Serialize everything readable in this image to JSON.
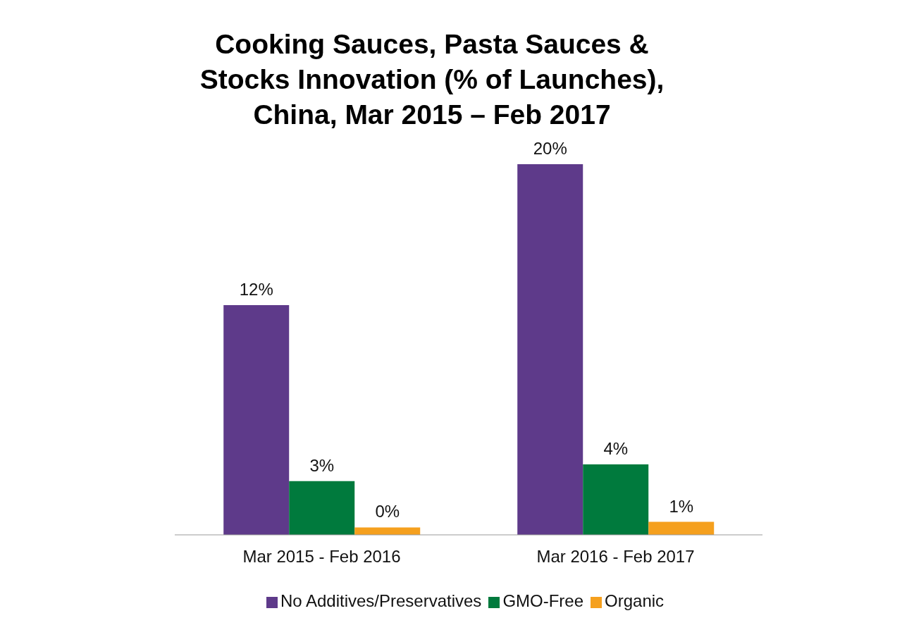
{
  "chart_data": {
    "type": "bar",
    "title": "Cooking Sauces, Pasta Sauces & Stocks Innovation (% of Launches), China, Mar 2015 – Feb 2017",
    "categories": [
      "Mar 2015 - Feb 2016",
      "Mar 2016 - Feb 2017"
    ],
    "series": [
      {
        "name": "No Additives/Preservatives",
        "color": "#5e3a8a",
        "values": [
          12.4,
          20
        ],
        "value_labels": [
          "12%",
          "20%"
        ]
      },
      {
        "name": "GMO-Free",
        "color": "#007a3d",
        "values": [
          2.9,
          3.8
        ],
        "value_labels": [
          "3%",
          "4%"
        ]
      },
      {
        "name": "Organic",
        "color": "#f5a01e",
        "values": [
          0.4,
          0.7
        ],
        "value_labels": [
          "0%",
          "1%"
        ]
      }
    ],
    "legend": "bottom",
    "grid": false
  }
}
